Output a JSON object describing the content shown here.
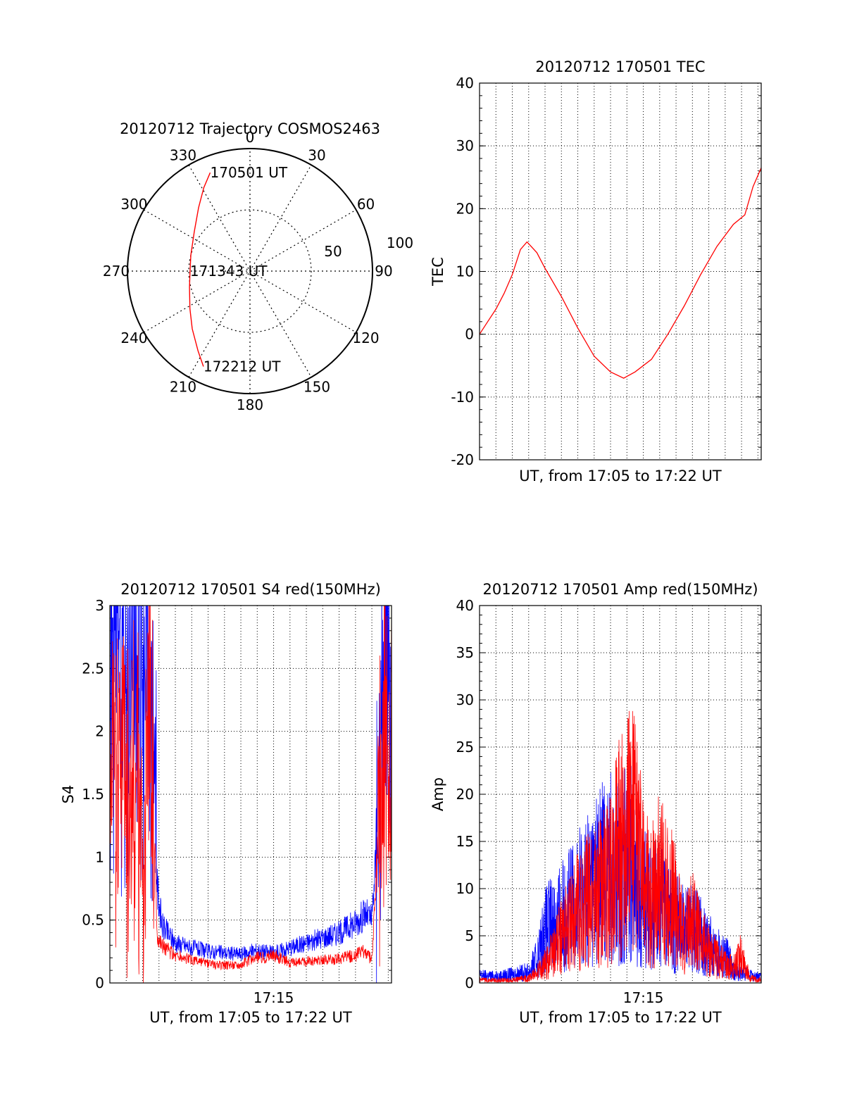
{
  "chart_data": [
    {
      "type": "polar",
      "title": "20120712 Trajectory COSMOS2463",
      "azimuth_labels": [
        "0",
        "30",
        "60",
        "90",
        "120",
        "150",
        "180",
        "210",
        "240",
        "270",
        "300",
        "330"
      ],
      "radial_labels": [
        "50",
        "100"
      ],
      "series": [
        {
          "color": "#ff0000",
          "points": [
            {
              "az": 338,
              "el": 12
            },
            {
              "az": 331,
              "el": 20
            },
            {
              "az": 321,
              "el": 30
            },
            {
              "az": 305,
              "el": 40
            },
            {
              "az": 285,
              "el": 45
            },
            {
              "az": 270,
              "el": 46
            },
            {
              "az": 255,
              "el": 44
            },
            {
              "az": 238,
              "el": 38
            },
            {
              "az": 225,
              "el": 30
            },
            {
              "az": 213,
              "el": 20
            },
            {
              "az": 206,
              "el": 12
            }
          ]
        }
      ],
      "annotations": [
        {
          "text": "170501 UT",
          "az": 338,
          "el": 12
        },
        {
          "text": "171343 UT",
          "az": 270,
          "el": 46
        },
        {
          "text": "172212 UT",
          "az": 206,
          "el": 12
        }
      ]
    },
    {
      "type": "line",
      "title": "20120712 170501 TEC",
      "xlabel": "UT, from 17:05 to 17:22 UT",
      "ylabel": "TEC",
      "xlim": [
        0,
        17.2
      ],
      "ylim": [
        -20,
        40
      ],
      "yticks": [
        -20,
        -10,
        0,
        10,
        20,
        30,
        40
      ],
      "grid": true,
      "series": [
        {
          "color": "#ff0000",
          "x": [
            0,
            0.5,
            1.0,
            1.5,
            2.0,
            2.5,
            2.9,
            3.5,
            4.0,
            5.0,
            6.0,
            7.0,
            8.0,
            8.8,
            9.5,
            10.5,
            11.5,
            12.5,
            13.5,
            14.5,
            15.5,
            16.2,
            16.7,
            17.2
          ],
          "y": [
            0,
            2.0,
            4.0,
            6.5,
            9.5,
            13.5,
            14.7,
            13.0,
            10.5,
            6.0,
            1.0,
            -3.5,
            -6.0,
            -7.0,
            -6.0,
            -4.0,
            0,
            4.5,
            9.5,
            14.0,
            17.5,
            19.0,
            23.5,
            26.5
          ]
        }
      ]
    },
    {
      "type": "line",
      "title": "20120712 170501 S4 red(150MHz)",
      "xlabel": "UT, from 17:05 to 17:22 UT",
      "ylabel": "S4",
      "xlim": [
        0,
        17.2
      ],
      "ylim": [
        0,
        3
      ],
      "yticks": [
        0,
        0.5,
        1,
        1.5,
        2,
        2.5,
        3
      ],
      "yticklabels": [
        "0",
        "0.5",
        "1",
        "1.5",
        "2",
        "2.5",
        "3"
      ],
      "xticks": [
        {
          "value": 10,
          "label": "17:15"
        }
      ],
      "grid": true,
      "series": [
        {
          "color": "#0000ff",
          "x": [
            0,
            0.4,
            0.8,
            1.2,
            1.6,
            2.0,
            2.4,
            2.7,
            2.9,
            3.2,
            4.0,
            5.0,
            6.0,
            7.0,
            8.0,
            9.0,
            10.0,
            11.0,
            12.0,
            13.0,
            14.0,
            15.0,
            15.6,
            16.0,
            16.3,
            16.6,
            16.9,
            17.2
          ],
          "y": [
            2.5,
            2.8,
            2.1,
            2.6,
            2.3,
            2.7,
            2.2,
            2.0,
            0.75,
            0.45,
            0.32,
            0.28,
            0.25,
            0.24,
            0.23,
            0.26,
            0.24,
            0.28,
            0.32,
            0.36,
            0.4,
            0.48,
            0.55,
            0.5,
            1.1,
            2.3,
            2.6,
            2.4
          ]
        },
        {
          "color": "#ff0000",
          "x": [
            0,
            0.4,
            0.8,
            1.2,
            1.6,
            2.0,
            2.4,
            2.7,
            2.9,
            3.2,
            4.0,
            5.0,
            6.0,
            7.0,
            8.0,
            9.0,
            10.0,
            11.0,
            12.0,
            13.0,
            14.0,
            15.0,
            15.6,
            16.0,
            16.3,
            16.6,
            16.9,
            17.2
          ],
          "y": [
            2.0,
            1.5,
            2.4,
            1.1,
            1.7,
            0.9,
            2.2,
            1.3,
            0.4,
            0.3,
            0.22,
            0.18,
            0.15,
            0.14,
            0.15,
            0.2,
            0.22,
            0.16,
            0.17,
            0.18,
            0.19,
            0.22,
            0.25,
            0.18,
            0.9,
            1.9,
            2.2,
            1.8
          ]
        }
      ]
    },
    {
      "type": "line",
      "title": "20120712 170501 Amp red(150MHz)",
      "xlabel": "UT, from 17:05 to 17:22 UT",
      "ylabel": "Amp",
      "xlim": [
        0,
        17.2
      ],
      "ylim": [
        0,
        40
      ],
      "yticks": [
        0,
        5,
        10,
        15,
        20,
        25,
        30,
        35,
        40
      ],
      "xticks": [
        {
          "value": 10,
          "label": "17:15"
        }
      ],
      "grid": true,
      "series": [
        {
          "color": "#0000ff",
          "x": [
            0,
            1,
            2,
            3,
            3.5,
            4,
            4.5,
            5,
            5.5,
            6,
            6.5,
            7,
            7.5,
            8,
            8.5,
            9,
            9.5,
            10,
            10.5,
            11,
            11.5,
            12,
            12.5,
            13,
            13.5,
            14,
            14.5,
            15,
            15.5,
            16,
            16.5,
            17.2
          ],
          "y": [
            0.8,
            0.7,
            0.9,
            1.2,
            2.5,
            5.5,
            6.5,
            7.0,
            8.0,
            9.0,
            10.0,
            11.0,
            12.0,
            12.5,
            11.5,
            13.0,
            12.0,
            9.0,
            8.0,
            8.5,
            7.0,
            6.5,
            5.5,
            6.0,
            5.0,
            4.0,
            3.5,
            3.0,
            1.5,
            1.0,
            0.8,
            0.6
          ]
        },
        {
          "color": "#ff0000",
          "x": [
            0,
            1,
            2,
            3,
            3.5,
            4,
            4.5,
            5,
            5.5,
            6,
            6.5,
            7,
            7.5,
            8,
            8.5,
            9,
            9.5,
            10,
            10.5,
            11,
            11.5,
            12,
            12.5,
            13,
            13.5,
            14,
            14.5,
            15,
            15.5,
            16,
            16.5,
            17.2
          ],
          "y": [
            0.3,
            0.3,
            0.3,
            0.5,
            1.0,
            2.0,
            3.5,
            5.0,
            6.0,
            7.5,
            8.5,
            9.0,
            10.0,
            11.0,
            14.0,
            17.0,
            15.5,
            10.5,
            9.0,
            11.0,
            9.5,
            8.0,
            5.0,
            6.5,
            4.5,
            3.5,
            2.5,
            2.0,
            1.5,
            3.0,
            0.5,
            0.3
          ]
        }
      ]
    }
  ]
}
